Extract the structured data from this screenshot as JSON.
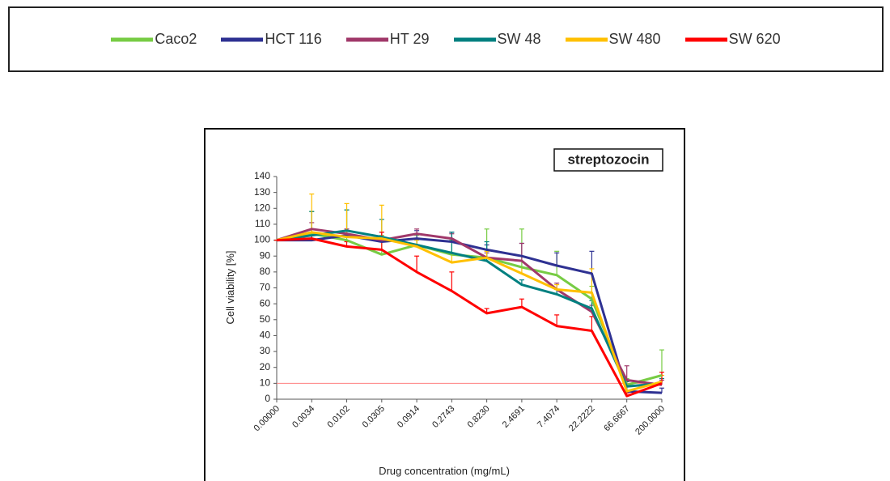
{
  "chart_data": {
    "type": "line",
    "title": "streptozocin",
    "xlabel": "Drug concentration (mg/mL)",
    "ylabel": "Cell viability [%]",
    "categories": [
      "0.00000",
      "0.0034",
      "0.0102",
      "0.0305",
      "0.0914",
      "0.2743",
      "0.8230",
      "2.4691",
      "7.4074",
      "22.2222",
      "66.6667",
      "200.0000"
    ],
    "ylim": [
      0,
      140
    ],
    "yticks": [
      0,
      10,
      20,
      30,
      40,
      50,
      60,
      70,
      80,
      90,
      100,
      110,
      120,
      130,
      140
    ],
    "reference_line": 10,
    "reference_color": "#ff8080",
    "series": [
      {
        "name": "Caco2",
        "color": "#77cc44",
        "values": [
          100,
          104,
          100,
          91,
          97,
          91,
          89,
          83,
          78,
          63,
          9,
          15
        ],
        "errors": [
          0,
          14,
          19,
          12,
          6,
          9,
          18,
          24,
          15,
          8,
          4,
          16
        ]
      },
      {
        "name": "HCT 116",
        "color": "#2e3192",
        "values": [
          100,
          100,
          103,
          99,
          101,
          99,
          94,
          90,
          84,
          79,
          5,
          4
        ],
        "errors": [
          0,
          4,
          3,
          3,
          5,
          6,
          3,
          8,
          8,
          14,
          3,
          3
        ]
      },
      {
        "name": "HT 29",
        "color": "#a0386a",
        "values": [
          100,
          107,
          104,
          100,
          104,
          101,
          89,
          87,
          69,
          55,
          12,
          9
        ],
        "errors": [
          0,
          4,
          3,
          5,
          3,
          3,
          3,
          11,
          4,
          4,
          9,
          3
        ]
      },
      {
        "name": "SW 48",
        "color": "#008080",
        "values": [
          100,
          103,
          106,
          102,
          97,
          92,
          87,
          72,
          66,
          57,
          8,
          10
        ],
        "errors": [
          0,
          15,
          13,
          11,
          4,
          13,
          12,
          3,
          3,
          5,
          3,
          3
        ]
      },
      {
        "name": "SW 480",
        "color": "#ffc000",
        "values": [
          100,
          105,
          102,
          101,
          96,
          86,
          89,
          79,
          69,
          67,
          5,
          11
        ],
        "errors": [
          0,
          24,
          21,
          21,
          4,
          5,
          4,
          4,
          3,
          15,
          3,
          4
        ]
      },
      {
        "name": "SW 620",
        "color": "#ff0000",
        "values": [
          100,
          101,
          96,
          94,
          80,
          68,
          54,
          58,
          46,
          43,
          2,
          10
        ],
        "errors": [
          0,
          2,
          3,
          11,
          10,
          12,
          3,
          5,
          7,
          9,
          2,
          7
        ]
      }
    ]
  }
}
